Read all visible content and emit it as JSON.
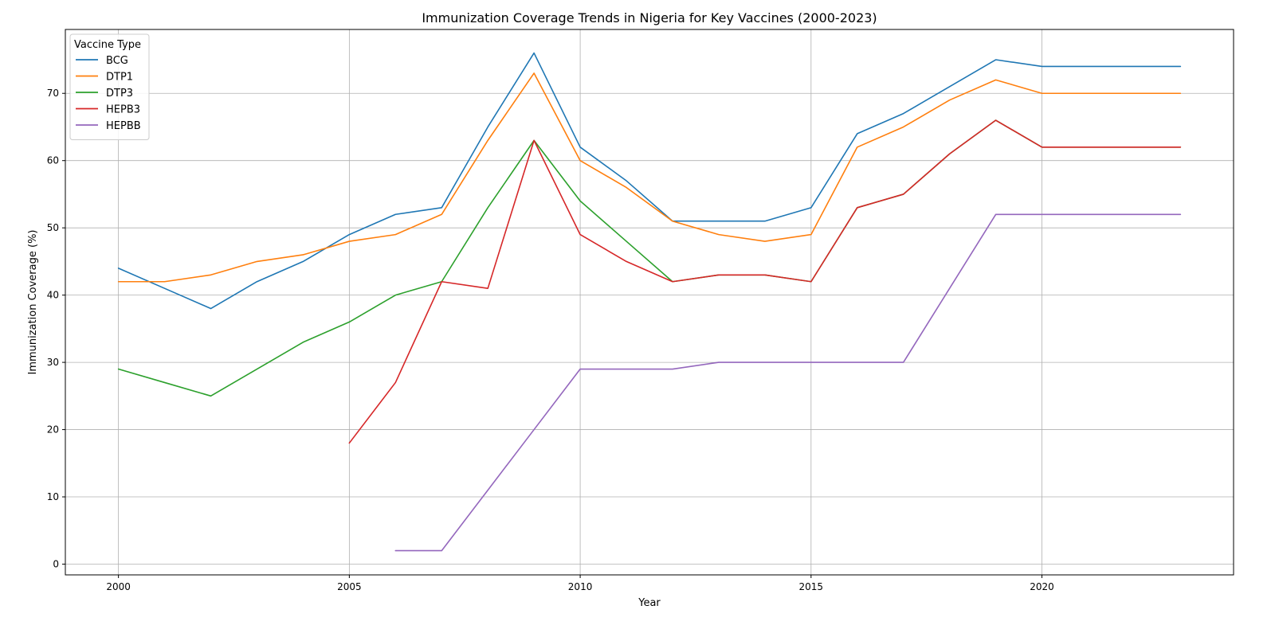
{
  "chart_data": {
    "type": "line",
    "title": "Immunization Coverage Trends in Nigeria for Key Vaccines (2000-2023)",
    "xlabel": "Year",
    "ylabel": "Immunization Coverage (%)",
    "xlim": [
      1998.85,
      2024.15
    ],
    "ylim": [
      -1.6,
      79.5
    ],
    "xticks": [
      2000,
      2005,
      2010,
      2015,
      2020
    ],
    "yticks": [
      0,
      10,
      20,
      30,
      40,
      50,
      60,
      70
    ],
    "grid": true,
    "legend": {
      "title": "Vaccine Type",
      "position": "top-left"
    },
    "series": [
      {
        "name": "BCG",
        "color": "#1f77b4",
        "x": [
          2000,
          2001,
          2002,
          2003,
          2004,
          2005,
          2006,
          2007,
          2008,
          2009,
          2010,
          2011,
          2012,
          2013,
          2014,
          2015,
          2016,
          2017,
          2018,
          2019,
          2020,
          2021,
          2022,
          2023
        ],
        "y": [
          44,
          41,
          38,
          42,
          45,
          49,
          52,
          53,
          65,
          76,
          62,
          57,
          51,
          51,
          51,
          53,
          64,
          67,
          71,
          75,
          74,
          74,
          74,
          74
        ]
      },
      {
        "name": "DTP1",
        "color": "#ff7f0e",
        "x": [
          2000,
          2001,
          2002,
          2003,
          2004,
          2005,
          2006,
          2007,
          2008,
          2009,
          2010,
          2011,
          2012,
          2013,
          2014,
          2015,
          2016,
          2017,
          2018,
          2019,
          2020,
          2021,
          2022,
          2023
        ],
        "y": [
          42,
          42,
          43,
          45,
          46,
          48,
          49,
          52,
          63,
          73,
          60,
          56,
          51,
          49,
          48,
          49,
          62,
          65,
          69,
          72,
          70,
          70,
          70,
          70
        ]
      },
      {
        "name": "DTP3",
        "color": "#2ca02c",
        "x": [
          2000,
          2001,
          2002,
          2003,
          2004,
          2005,
          2006,
          2007,
          2008,
          2009,
          2010,
          2011,
          2012,
          2013,
          2014,
          2015,
          2016,
          2017,
          2018,
          2019,
          2020,
          2021,
          2022,
          2023
        ],
        "y": [
          29,
          27,
          25,
          29,
          33,
          36,
          40,
          42,
          53,
          63,
          54,
          48,
          42,
          43,
          43,
          42,
          53,
          55,
          61,
          66,
          62,
          62,
          62,
          62
        ]
      },
      {
        "name": "HEPB3",
        "color": "#d62728",
        "x": [
          2005,
          2006,
          2007,
          2008,
          2009,
          2010,
          2011,
          2012,
          2013,
          2014,
          2015,
          2016,
          2017,
          2018,
          2019,
          2020,
          2021,
          2022,
          2023
        ],
        "y": [
          18,
          27,
          42,
          41,
          63,
          49,
          45,
          42,
          43,
          43,
          42,
          53,
          55,
          61,
          66,
          62,
          62,
          62,
          62
        ]
      },
      {
        "name": "HEPBB",
        "color": "#9467bd",
        "x": [
          2006,
          2007,
          2008,
          2009,
          2010,
          2011,
          2012,
          2013,
          2014,
          2015,
          2016,
          2017,
          2018,
          2019,
          2020,
          2021,
          2022,
          2023
        ],
        "y": [
          2,
          2,
          11,
          20,
          29,
          29,
          29,
          30,
          30,
          30,
          30,
          30,
          41,
          52,
          52,
          52,
          52,
          52
        ]
      }
    ]
  }
}
